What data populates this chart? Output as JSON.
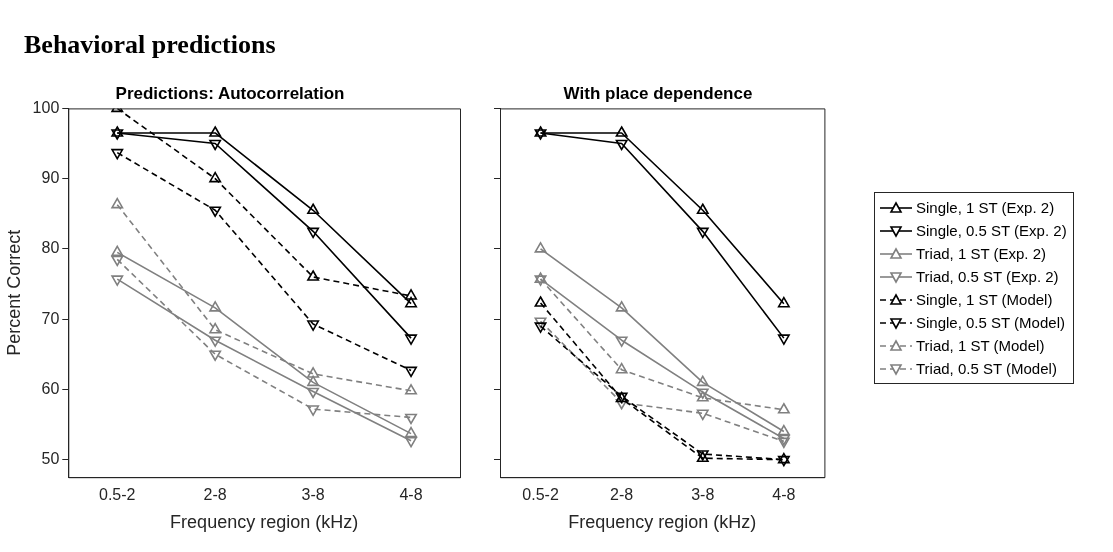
{
  "chart_data": [
    {
      "type": "line",
      "title": "Predictions: Autocorrelation",
      "xlabel": "Frequency region (kHz)",
      "ylabel": "Percent Correct",
      "annotations": [
        "Behavioral predictions"
      ],
      "categories": [
        "0.5-2",
        "2-8",
        "3-8",
        "4-8"
      ],
      "ylim": [
        47.5,
        100
      ],
      "yticks": [
        50,
        60,
        70,
        80,
        90,
        100
      ],
      "grid": false,
      "legend": false,
      "series": [
        {
          "color": "#000000",
          "marker": "triangle",
          "line_style": "solid",
          "values": [
            96.5,
            96.5,
            85.5,
            72.2
          ]
        },
        {
          "color": "#000000",
          "marker": "triangle-down",
          "line_style": "solid",
          "values": [
            96.5,
            95,
            82.5,
            67.3
          ]
        },
        {
          "color": "#808080",
          "marker": "triangle",
          "line_style": "solid",
          "values": [
            79.5,
            71.6,
            61,
            53.7
          ]
        },
        {
          "color": "#808080",
          "marker": "triangle-down",
          "line_style": "solid",
          "values": [
            75.7,
            67,
            59.7,
            52.7
          ]
        },
        {
          "color": "#000000",
          "marker": "triangle",
          "line_style": "dashed",
          "values": [
            100,
            90,
            76,
            73.3
          ]
        },
        {
          "color": "#000000",
          "marker": "triangle-down",
          "line_style": "dashed",
          "values": [
            93.7,
            85.5,
            69.3,
            62.7
          ]
        },
        {
          "color": "#808080",
          "marker": "triangle",
          "line_style": "dashed",
          "values": [
            86.3,
            68.5,
            62.2,
            59.8
          ]
        },
        {
          "color": "#808080",
          "marker": "triangle-down",
          "line_style": "dashed",
          "values": [
            78.5,
            65,
            57.2,
            56
          ]
        }
      ]
    },
    {
      "type": "line",
      "title": "With place dependence",
      "xlabel": "Frequency region (kHz)",
      "categories": [
        "0.5-2",
        "2-8",
        "3-8",
        "4-8"
      ],
      "ylim": [
        47.5,
        100
      ],
      "yticks": [
        50,
        60,
        70,
        80,
        90,
        100
      ],
      "tick_labels": "x",
      "grid": false,
      "legend": "right",
      "series": [
        {
          "name": "Single, 1 ST (Exp. 2)",
          "color": "#000000",
          "marker": "triangle",
          "line_style": "solid",
          "values": [
            96.5,
            96.5,
            85.5,
            72.2
          ]
        },
        {
          "name": "Single, 0.5 ST (Exp. 2)",
          "color": "#000000",
          "marker": "triangle-down",
          "line_style": "solid",
          "values": [
            96.5,
            95,
            82.5,
            67.3
          ]
        },
        {
          "name": "Triad, 1 ST (Exp. 2)",
          "color": "#808080",
          "marker": "triangle",
          "line_style": "solid",
          "values": [
            80,
            71.6,
            61,
            54
          ]
        },
        {
          "name": "Triad, 0.5 ST (Exp. 2)",
          "color": "#808080",
          "marker": "triangle-down",
          "line_style": "solid",
          "values": [
            75.7,
            67,
            59.6,
            53
          ]
        },
        {
          "name": "Single, 1 ST (Model)",
          "color": "#000000",
          "marker": "triangle",
          "line_style": "dashed",
          "values": [
            72.3,
            58.7,
            50.2,
            50
          ]
        },
        {
          "name": "Single, 0.5 ST (Model)",
          "color": "#000000",
          "marker": "triangle-down",
          "line_style": "dashed",
          "values": [
            69,
            59,
            50.8,
            50
          ]
        },
        {
          "name": "Triad, 1 ST (Model)",
          "color": "#808080",
          "marker": "triangle",
          "line_style": "dashed",
          "values": [
            75.7,
            62.8,
            58.8,
            57.1
          ]
        },
        {
          "name": "Triad, 0.5 ST (Model)",
          "color": "#808080",
          "marker": "triangle-down",
          "line_style": "dashed",
          "values": [
            69.7,
            58.1,
            56.6,
            52.6
          ]
        }
      ]
    }
  ]
}
